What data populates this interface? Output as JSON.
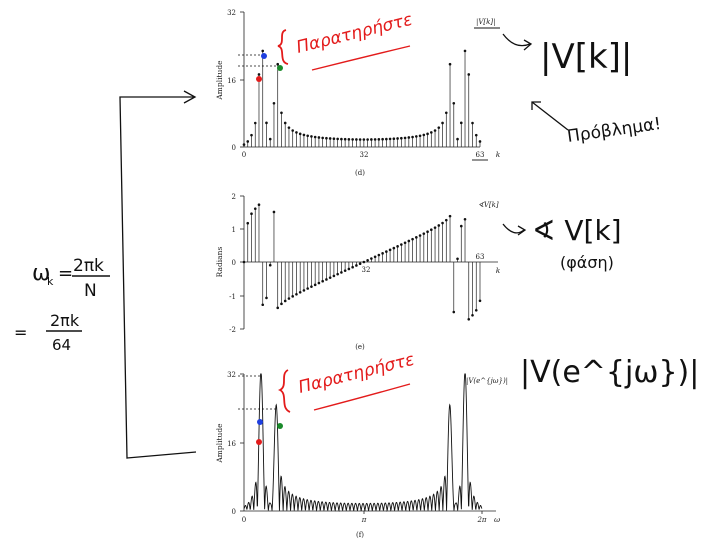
{
  "chart_data": [
    {
      "type": "stem",
      "panel": "(d)",
      "legend": "|V[k]|",
      "ylabel": "Amplitude",
      "xlabel": "k",
      "xlim": [
        0,
        64
      ],
      "ylim": [
        0,
        32
      ],
      "xticks": [
        "0",
        "32",
        "63"
      ],
      "yticks": [
        "0",
        "16",
        "32"
      ],
      "n_samples": 64
    },
    {
      "type": "stem",
      "panel": "(e)",
      "legend": "∢V[k]",
      "ylabel": "Radians",
      "xlabel": "k",
      "xlim": [
        0,
        64
      ],
      "ylim": [
        -2,
        2
      ],
      "xticks": [
        "32",
        "63"
      ],
      "yticks": [
        "2",
        "1",
        "0",
        "-1",
        "-2"
      ],
      "n_samples": 64
    },
    {
      "type": "line",
      "panel": "(f)",
      "legend": "|V(e^{jω})|",
      "ylabel": "Amplitude",
      "xlabel": "ω",
      "xlim": [
        0,
        6.2832
      ],
      "ylim": [
        0,
        32
      ],
      "xticks": [
        "0",
        "π",
        "2π"
      ],
      "yticks": [
        "0",
        "16",
        "32"
      ]
    }
  ],
  "annotations": {
    "note_paratiriste_1": "Παρατηρήστε",
    "note_paratiriste_2": "Παρατηρήστε",
    "note_magnitude": "|V[k]|",
    "note_provlima": "Πρόβλημα!",
    "note_phase": "∢ V[k]",
    "note_phase_word": "(φάση)",
    "note_dtft": "|V(e^{jω})|",
    "formula_lhs": "ω",
    "formula_sub": "k",
    "formula_eq": "=",
    "formula_num": "2πk",
    "formula_den": "N",
    "formula2_num": "2πk",
    "formula2_den": "64"
  },
  "colors": {
    "marker_red": "#e31b1b",
    "marker_blue": "#1f3fe0",
    "marker_green": "#1a8a2a",
    "ink": "#111111"
  }
}
